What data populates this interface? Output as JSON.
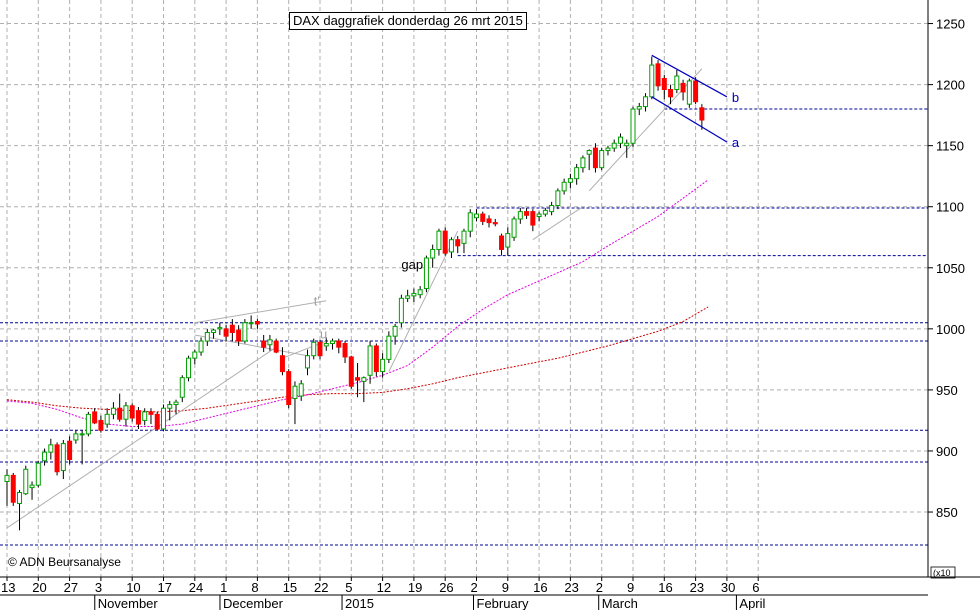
{
  "chart_data": {
    "type": "candlestick",
    "title": "DAX daggrafiek donderdag 26 mrt 2015",
    "credit": "© ADN Beursanalyse",
    "y_scale_label": "x10",
    "y_axis": {
      "position": "right",
      "range": [
        823,
        1257
      ],
      "ticks": [
        850,
        900,
        950,
        1000,
        1050,
        1100,
        1150,
        1200,
        1250
      ]
    },
    "x_day_ticks": [
      {
        "label": "13",
        "index": 0
      },
      {
        "label": "20",
        "index": 5
      },
      {
        "label": "27",
        "index": 10
      },
      {
        "label": "3",
        "index": 15
      },
      {
        "label": "10",
        "index": 20
      },
      {
        "label": "17",
        "index": 25
      },
      {
        "label": "24",
        "index": 30
      },
      {
        "label": "1",
        "index": 35
      },
      {
        "label": "8",
        "index": 40
      },
      {
        "label": "15",
        "index": 45
      },
      {
        "label": "22",
        "index": 50
      },
      {
        "label": "5",
        "index": 55
      },
      {
        "label": "12",
        "index": 60
      },
      {
        "label": "19",
        "index": 65
      },
      {
        "label": "26",
        "index": 70
      },
      {
        "label": "2",
        "index": 75
      },
      {
        "label": "9",
        "index": 80
      },
      {
        "label": "16",
        "index": 85
      },
      {
        "label": "23",
        "index": 90
      },
      {
        "label": "2",
        "index": 95
      },
      {
        "label": "9",
        "index": 100
      },
      {
        "label": "16",
        "index": 105
      },
      {
        "label": "23",
        "index": 110
      },
      {
        "label": "30",
        "index": 115
      },
      {
        "label": "6",
        "index": 120
      }
    ],
    "x_month_labels": [
      {
        "label": "November",
        "index": 14.5
      },
      {
        "label": "December",
        "index": 34.5
      },
      {
        "label": "2015",
        "index": 54
      },
      {
        "label": "February",
        "index": 75
      },
      {
        "label": "March",
        "index": 95
      },
      {
        "label": "April",
        "index": 117
      }
    ],
    "colors": {
      "up": "#00a000",
      "down": "#ff0000",
      "support_line": "#000099",
      "ma_short": "#e000e0",
      "ma_long": "#d00000",
      "trendline": "#b0b0b0",
      "grid": "#b0b0b0",
      "channel": "#0000c0"
    },
    "candles": [
      {
        "o": 875,
        "h": 885,
        "l": 855,
        "c": 880
      },
      {
        "o": 880,
        "h": 882,
        "l": 855,
        "c": 858
      },
      {
        "o": 857,
        "h": 868,
        "l": 835,
        "c": 866
      },
      {
        "o": 865,
        "h": 888,
        "l": 864,
        "c": 885
      },
      {
        "o": 870,
        "h": 875,
        "l": 860,
        "c": 872
      },
      {
        "o": 872,
        "h": 892,
        "l": 870,
        "c": 890
      },
      {
        "o": 892,
        "h": 902,
        "l": 888,
        "c": 899
      },
      {
        "o": 899,
        "h": 910,
        "l": 893,
        "c": 905
      },
      {
        "o": 905,
        "h": 907,
        "l": 880,
        "c": 883
      },
      {
        "o": 884,
        "h": 909,
        "l": 877,
        "c": 906
      },
      {
        "o": 908,
        "h": 912,
        "l": 889,
        "c": 893
      },
      {
        "o": 909,
        "h": 917,
        "l": 906,
        "c": 914
      },
      {
        "o": 914,
        "h": 917,
        "l": 889,
        "c": 914
      },
      {
        "o": 914,
        "h": 932,
        "l": 912,
        "c": 930
      },
      {
        "o": 932,
        "h": 935,
        "l": 922,
        "c": 923
      },
      {
        "o": 925,
        "h": 929,
        "l": 915,
        "c": 917
      },
      {
        "o": 922,
        "h": 935,
        "l": 919,
        "c": 930
      },
      {
        "o": 930,
        "h": 940,
        "l": 926,
        "c": 935
      },
      {
        "o": 935,
        "h": 947,
        "l": 924,
        "c": 926
      },
      {
        "o": 926,
        "h": 940,
        "l": 920,
        "c": 937
      },
      {
        "o": 937,
        "h": 939,
        "l": 924,
        "c": 927
      },
      {
        "o": 933,
        "h": 936,
        "l": 918,
        "c": 922
      },
      {
        "o": 925,
        "h": 935,
        "l": 921,
        "c": 932
      },
      {
        "o": 932,
        "h": 935,
        "l": 922,
        "c": 930
      },
      {
        "o": 930,
        "h": 932,
        "l": 917,
        "c": 918
      },
      {
        "o": 918,
        "h": 938,
        "l": 916,
        "c": 935
      },
      {
        "o": 935,
        "h": 941,
        "l": 925,
        "c": 938
      },
      {
        "o": 938,
        "h": 942,
        "l": 930,
        "c": 940
      },
      {
        "o": 944,
        "h": 962,
        "l": 940,
        "c": 960
      },
      {
        "o": 960,
        "h": 978,
        "l": 957,
        "c": 976
      },
      {
        "o": 976,
        "h": 983,
        "l": 971,
        "c": 981
      },
      {
        "o": 981,
        "h": 993,
        "l": 978,
        "c": 990
      },
      {
        "o": 990,
        "h": 1000,
        "l": 986,
        "c": 997
      },
      {
        "o": 997,
        "h": 1000,
        "l": 992,
        "c": 999
      },
      {
        "o": 1000,
        "h": 1005,
        "l": 995,
        "c": 1001
      },
      {
        "o": 1000,
        "h": 1003,
        "l": 990,
        "c": 994
      },
      {
        "o": 1003,
        "h": 1008,
        "l": 990,
        "c": 997
      },
      {
        "o": 999,
        "h": 1003,
        "l": 986,
        "c": 990
      },
      {
        "o": 990,
        "h": 1008,
        "l": 988,
        "c": 1005
      },
      {
        "o": 1005,
        "h": 1011,
        "l": 1000,
        "c": 1005
      },
      {
        "o": 1006,
        "h": 1008,
        "l": 1000,
        "c": 1004
      },
      {
        "o": 990,
        "h": 995,
        "l": 981,
        "c": 985
      },
      {
        "o": 987,
        "h": 995,
        "l": 982,
        "c": 991
      },
      {
        "o": 990,
        "h": 992,
        "l": 980,
        "c": 981
      },
      {
        "o": 978,
        "h": 985,
        "l": 962,
        "c": 965
      },
      {
        "o": 965,
        "h": 967,
        "l": 935,
        "c": 938
      },
      {
        "o": 943,
        "h": 957,
        "l": 922,
        "c": 953
      },
      {
        "o": 945,
        "h": 958,
        "l": 941,
        "c": 955
      },
      {
        "o": 968,
        "h": 983,
        "l": 962,
        "c": 978
      },
      {
        "o": 978,
        "h": 992,
        "l": 975,
        "c": 989
      },
      {
        "o": 989,
        "h": 991,
        "l": 975,
        "c": 978
      },
      {
        "o": 986,
        "h": 993,
        "l": 982,
        "c": 988
      },
      {
        "o": 988,
        "h": 992,
        "l": 983,
        "c": 990
      },
      {
        "o": 990,
        "h": 992,
        "l": 980,
        "c": 985
      },
      {
        "o": 988,
        "h": 990,
        "l": 972,
        "c": 977
      },
      {
        "o": 977,
        "h": 978,
        "l": 951,
        "c": 953
      },
      {
        "o": 960,
        "h": 972,
        "l": 944,
        "c": 958
      },
      {
        "o": 957,
        "h": 961,
        "l": 940,
        "c": 960
      },
      {
        "o": 962,
        "h": 990,
        "l": 955,
        "c": 986
      },
      {
        "o": 986,
        "h": 988,
        "l": 961,
        "c": 965
      },
      {
        "o": 965,
        "h": 980,
        "l": 960,
        "c": 975
      },
      {
        "o": 975,
        "h": 998,
        "l": 972,
        "c": 994
      },
      {
        "o": 994,
        "h": 1004,
        "l": 987,
        "c": 1002
      },
      {
        "o": 1005,
        "h": 1028,
        "l": 1001,
        "c": 1025
      },
      {
        "o": 1025,
        "h": 1032,
        "l": 1022,
        "c": 1027
      },
      {
        "o": 1027,
        "h": 1033,
        "l": 1022,
        "c": 1029
      },
      {
        "o": 1028,
        "h": 1035,
        "l": 1025,
        "c": 1032
      },
      {
        "o": 1033,
        "h": 1060,
        "l": 1030,
        "c": 1058
      },
      {
        "o": 1058,
        "h": 1069,
        "l": 1050,
        "c": 1065
      },
      {
        "o": 1065,
        "h": 1082,
        "l": 1060,
        "c": 1080
      },
      {
        "o": 1080,
        "h": 1083,
        "l": 1060,
        "c": 1062
      },
      {
        "o": 1063,
        "h": 1075,
        "l": 1058,
        "c": 1073
      },
      {
        "o": 1073,
        "h": 1076,
        "l": 1062,
        "c": 1068
      },
      {
        "o": 1070,
        "h": 1082,
        "l": 1062,
        "c": 1080
      },
      {
        "o": 1080,
        "h": 1098,
        "l": 1075,
        "c": 1095
      },
      {
        "o": 1091,
        "h": 1098,
        "l": 1088,
        "c": 1094
      },
      {
        "o": 1094,
        "h": 1096,
        "l": 1085,
        "c": 1088
      },
      {
        "o": 1090,
        "h": 1093,
        "l": 1083,
        "c": 1087
      },
      {
        "o": 1087,
        "h": 1090,
        "l": 1084,
        "c": 1086
      },
      {
        "o": 1076,
        "h": 1078,
        "l": 1060,
        "c": 1065
      },
      {
        "o": 1067,
        "h": 1083,
        "l": 1060,
        "c": 1078
      },
      {
        "o": 1075,
        "h": 1092,
        "l": 1072,
        "c": 1090
      },
      {
        "o": 1090,
        "h": 1099,
        "l": 1086,
        "c": 1096
      },
      {
        "o": 1096,
        "h": 1099,
        "l": 1090,
        "c": 1093
      },
      {
        "o": 1096,
        "h": 1098,
        "l": 1080,
        "c": 1085
      },
      {
        "o": 1092,
        "h": 1096,
        "l": 1088,
        "c": 1094
      },
      {
        "o": 1094,
        "h": 1099,
        "l": 1092,
        "c": 1097
      },
      {
        "o": 1096,
        "h": 1104,
        "l": 1093,
        "c": 1101
      },
      {
        "o": 1101,
        "h": 1115,
        "l": 1098,
        "c": 1113
      },
      {
        "o": 1113,
        "h": 1123,
        "l": 1110,
        "c": 1120
      },
      {
        "o": 1120,
        "h": 1127,
        "l": 1115,
        "c": 1123
      },
      {
        "o": 1123,
        "h": 1135,
        "l": 1118,
        "c": 1132
      },
      {
        "o": 1132,
        "h": 1142,
        "l": 1128,
        "c": 1140
      },
      {
        "o": 1143,
        "h": 1147,
        "l": 1130,
        "c": 1146
      },
      {
        "o": 1148,
        "h": 1152,
        "l": 1128,
        "c": 1132
      },
      {
        "o": 1132,
        "h": 1148,
        "l": 1130,
        "c": 1146
      },
      {
        "o": 1146,
        "h": 1150,
        "l": 1142,
        "c": 1148
      },
      {
        "o": 1148,
        "h": 1155,
        "l": 1145,
        "c": 1152
      },
      {
        "o": 1152,
        "h": 1160,
        "l": 1148,
        "c": 1157
      },
      {
        "o": 1150,
        "h": 1155,
        "l": 1140,
        "c": 1152
      },
      {
        "o": 1152,
        "h": 1182,
        "l": 1149,
        "c": 1180
      },
      {
        "o": 1180,
        "h": 1185,
        "l": 1175,
        "c": 1182
      },
      {
        "o": 1182,
        "h": 1193,
        "l": 1178,
        "c": 1190
      },
      {
        "o": 1190,
        "h": 1223,
        "l": 1188,
        "c": 1216
      },
      {
        "o": 1217,
        "h": 1220,
        "l": 1195,
        "c": 1199
      },
      {
        "o": 1205,
        "h": 1208,
        "l": 1188,
        "c": 1196
      },
      {
        "o": 1196,
        "h": 1200,
        "l": 1184,
        "c": 1190
      },
      {
        "o": 1196,
        "h": 1212,
        "l": 1193,
        "c": 1207
      },
      {
        "o": 1201,
        "h": 1204,
        "l": 1187,
        "c": 1194
      },
      {
        "o": 1184,
        "h": 1205,
        "l": 1181,
        "c": 1203
      },
      {
        "o": 1203,
        "h": 1206,
        "l": 1184,
        "c": 1186
      },
      {
        "o": 1181,
        "h": 1184,
        "l": 1163,
        "c": 1171
      }
    ],
    "horizontal_lines": [
      1180,
      1099,
      1060,
      1005,
      990,
      917,
      891,
      823
    ],
    "ma_short": [
      {
        "x": 0,
        "y": 941
      },
      {
        "x": 4,
        "y": 939
      },
      {
        "x": 8,
        "y": 934
      },
      {
        "x": 12,
        "y": 927
      },
      {
        "x": 16,
        "y": 922
      },
      {
        "x": 20,
        "y": 920
      },
      {
        "x": 24,
        "y": 920
      },
      {
        "x": 28,
        "y": 922
      },
      {
        "x": 32,
        "y": 927
      },
      {
        "x": 36,
        "y": 932
      },
      {
        "x": 40,
        "y": 937
      },
      {
        "x": 44,
        "y": 942
      },
      {
        "x": 48,
        "y": 946
      },
      {
        "x": 52,
        "y": 951
      },
      {
        "x": 56,
        "y": 956
      },
      {
        "x": 60,
        "y": 962
      },
      {
        "x": 64,
        "y": 970
      },
      {
        "x": 68,
        "y": 985
      },
      {
        "x": 72,
        "y": 1002
      },
      {
        "x": 76,
        "y": 1016
      },
      {
        "x": 80,
        "y": 1028
      },
      {
        "x": 84,
        "y": 1037
      },
      {
        "x": 88,
        "y": 1046
      },
      {
        "x": 92,
        "y": 1055
      },
      {
        "x": 96,
        "y": 1068
      },
      {
        "x": 100,
        "y": 1080
      },
      {
        "x": 104,
        "y": 1092
      },
      {
        "x": 108,
        "y": 1107
      },
      {
        "x": 112,
        "y": 1122
      }
    ],
    "ma_long": [
      {
        "x": 0,
        "y": 942
      },
      {
        "x": 4,
        "y": 940
      },
      {
        "x": 8,
        "y": 937
      },
      {
        "x": 12,
        "y": 935
      },
      {
        "x": 16,
        "y": 934
      },
      {
        "x": 20,
        "y": 933
      },
      {
        "x": 24,
        "y": 932
      },
      {
        "x": 28,
        "y": 933
      },
      {
        "x": 32,
        "y": 935
      },
      {
        "x": 36,
        "y": 938
      },
      {
        "x": 40,
        "y": 941
      },
      {
        "x": 44,
        "y": 944
      },
      {
        "x": 48,
        "y": 946
      },
      {
        "x": 52,
        "y": 947
      },
      {
        "x": 56,
        "y": 947
      },
      {
        "x": 60,
        "y": 948
      },
      {
        "x": 64,
        "y": 951
      },
      {
        "x": 68,
        "y": 955
      },
      {
        "x": 72,
        "y": 960
      },
      {
        "x": 76,
        "y": 964
      },
      {
        "x": 80,
        "y": 968
      },
      {
        "x": 84,
        "y": 972
      },
      {
        "x": 88,
        "y": 976
      },
      {
        "x": 92,
        "y": 981
      },
      {
        "x": 96,
        "y": 986
      },
      {
        "x": 100,
        "y": 992
      },
      {
        "x": 104,
        "y": 998
      },
      {
        "x": 108,
        "y": 1006
      },
      {
        "x": 112,
        "y": 1018
      }
    ],
    "trendlines": [
      {
        "x1": 0,
        "y1": 837,
        "x2": 43,
        "y2": 985
      },
      {
        "x1": 30,
        "y1": 1005,
        "x2": 51,
        "y2": 1023
      },
      {
        "x1": 30,
        "y1": 995,
        "x2": 48,
        "y2": 978
      },
      {
        "x1": 44,
        "y1": 976,
        "x2": 51,
        "y2": 990
      },
      {
        "x1": 61,
        "y1": 965,
        "x2": 72,
        "y2": 1080
      },
      {
        "x1": 84,
        "y1": 1073,
        "x2": 92,
        "y2": 1100
      },
      {
        "x1": 93,
        "y1": 1113,
        "x2": 111,
        "y2": 1213
      }
    ],
    "channel": [
      {
        "label": "b",
        "x1": 103,
        "y1": 1224,
        "x2": 115,
        "y2": 1190
      },
      {
        "label": "a",
        "x1": 103,
        "y1": 1190,
        "x2": 115,
        "y2": 1153
      }
    ],
    "annotations": [
      {
        "text": "gap",
        "x": 63,
        "y": 1049
      },
      {
        "text": "t'",
        "x": 49,
        "y": 1019
      },
      {
        "text": "u",
        "x": 50,
        "y": 992
      }
    ]
  }
}
